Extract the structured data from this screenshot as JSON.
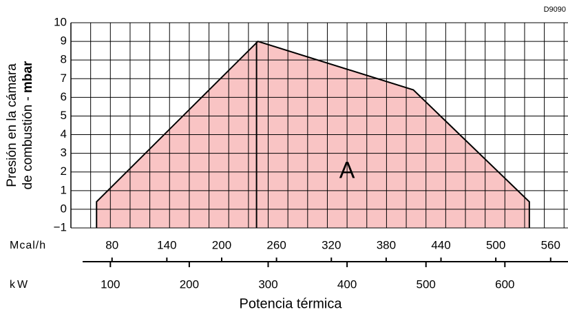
{
  "chart_data": {
    "type": "area",
    "code": "D9090",
    "ylabel": [
      "Presión en la cámara",
      "de combustión -"
    ],
    "ylabel_unit": "mbar",
    "xlabel": "Potencia térmica",
    "x_unit": "kW",
    "x2_unit": "Mcal/h",
    "xlim": [
      50,
      680
    ],
    "xticks": [
      100,
      200,
      300,
      400,
      500,
      600
    ],
    "x2lim": [
      35,
      579
    ],
    "x2ticks": [
      80,
      140,
      200,
      260,
      320,
      380,
      440,
      500,
      560
    ],
    "ylim": [
      -1,
      10
    ],
    "yticks": [
      {
        "value": -1,
        "label": "−1"
      },
      0,
      1,
      2,
      3,
      4,
      5,
      6,
      7,
      8,
      9,
      10
    ],
    "grid": true,
    "series": [
      {
        "name": "A",
        "color": "#f9c4c4",
        "x": [
          82.5,
          82.5,
          287,
          484,
          631,
          631
        ],
        "values": [
          -1,
          0.4,
          9,
          6.4,
          0.4,
          -1
        ]
      }
    ],
    "annotations": [
      {
        "text": "A",
        "x": 400,
        "y": 2
      }
    ]
  }
}
